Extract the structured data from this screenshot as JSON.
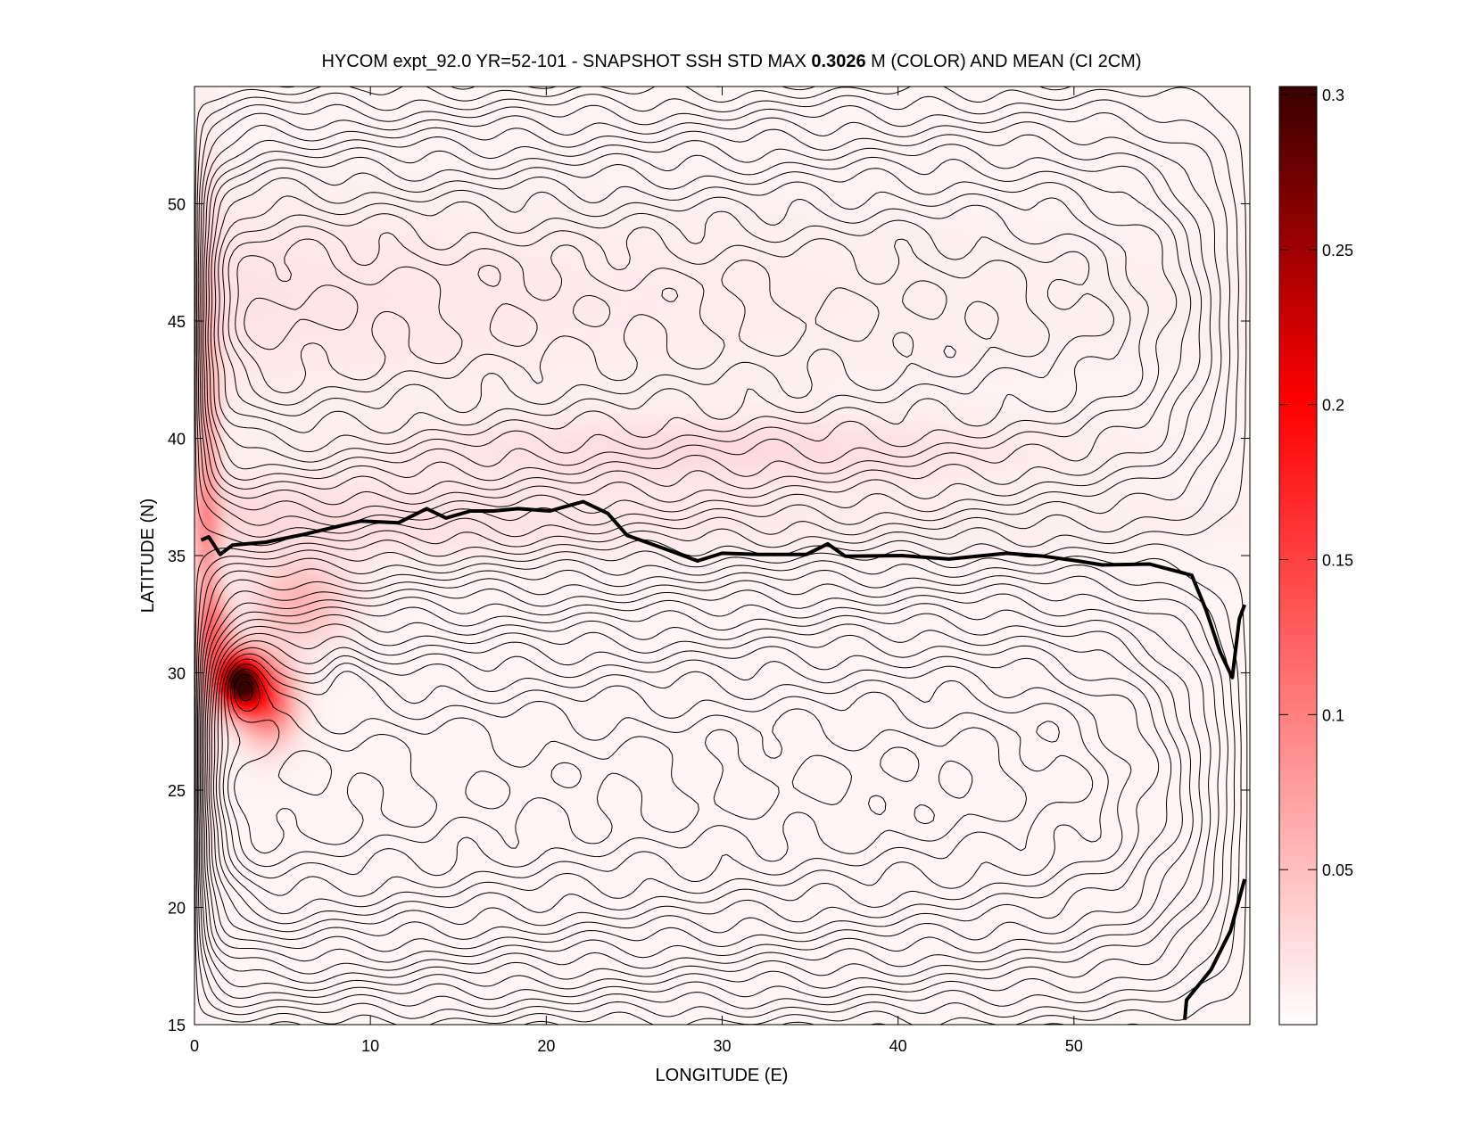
{
  "chart_data": {
    "type": "heatmap",
    "title_prefix": "HYCOM expt_92.0 YR=52-101 - SNAPSHOT SSH STD MAX ",
    "title_bold": "0.3026",
    "title_suffix": " M (COLOR) AND MEAN (CI 2CM)",
    "xlabel": "LONGITUDE (E)",
    "ylabel": "LATITUDE (N)",
    "xlim": [
      0,
      60
    ],
    "ylim": [
      15,
      55
    ],
    "xticks": [
      "0",
      "10",
      "20",
      "30",
      "40",
      "50"
    ],
    "xtick_values": [
      0,
      10,
      20,
      30,
      40,
      50
    ],
    "yticks": [
      "15",
      "20",
      "25",
      "30",
      "35",
      "40",
      "45",
      "50"
    ],
    "ytick_values": [
      15,
      20,
      25,
      30,
      35,
      40,
      45,
      50
    ],
    "colorbar": {
      "range": [
        0,
        0.3026
      ],
      "ticks": [
        "0.05",
        "0.1",
        "0.15",
        "0.2",
        "0.25",
        "0.3"
      ],
      "tick_values": [
        0.05,
        0.1,
        0.15,
        0.2,
        0.25,
        0.3
      ],
      "colors": [
        "#ffffff",
        "#ff0000",
        "#3a0000"
      ]
    },
    "max_std": 0.3026,
    "contour_interval_m": 0.02,
    "std_max_location": [
      2.5,
      29.5
    ],
    "zero_contour_segments": [
      [
        [
          0.38,
          35.66
        ],
        [
          0.81,
          35.8
        ],
        [
          1.46,
          35.05
        ],
        [
          2.16,
          35.45
        ],
        [
          4.05,
          35.57
        ],
        [
          6.2,
          35.9
        ],
        [
          9.45,
          36.47
        ],
        [
          11.6,
          36.4
        ],
        [
          13.2,
          37.0
        ],
        [
          14.3,
          36.6
        ],
        [
          15.7,
          36.9
        ],
        [
          17,
          36.9
        ],
        [
          18.4,
          37.0
        ],
        [
          20.2,
          36.9
        ],
        [
          22.1,
          37.3
        ],
        [
          23.5,
          36.8
        ],
        [
          24.6,
          35.86
        ],
        [
          26.7,
          35.3
        ],
        [
          28.6,
          34.77
        ],
        [
          30,
          35.1
        ],
        [
          32.1,
          35.05
        ],
        [
          34.8,
          35.05
        ],
        [
          36,
          35.5
        ],
        [
          37,
          34.97
        ],
        [
          40.2,
          35.0
        ],
        [
          42.9,
          34.85
        ],
        [
          46.2,
          35.1
        ],
        [
          48.3,
          34.97
        ],
        [
          50.2,
          34.77
        ],
        [
          51.6,
          34.6
        ],
        [
          54.3,
          34.64
        ],
        [
          56.7,
          34.16
        ],
        [
          57.5,
          32.7
        ],
        [
          58.3,
          30.9
        ],
        [
          59.0,
          29.8
        ],
        [
          59.4,
          32.3
        ],
        [
          59.7,
          32.9
        ]
      ],
      [
        [
          56.3,
          15.2
        ],
        [
          56.4,
          16.05
        ],
        [
          57.8,
          17.35
        ],
        [
          58.9,
          19.0
        ],
        [
          59.7,
          21.2
        ]
      ]
    ]
  }
}
